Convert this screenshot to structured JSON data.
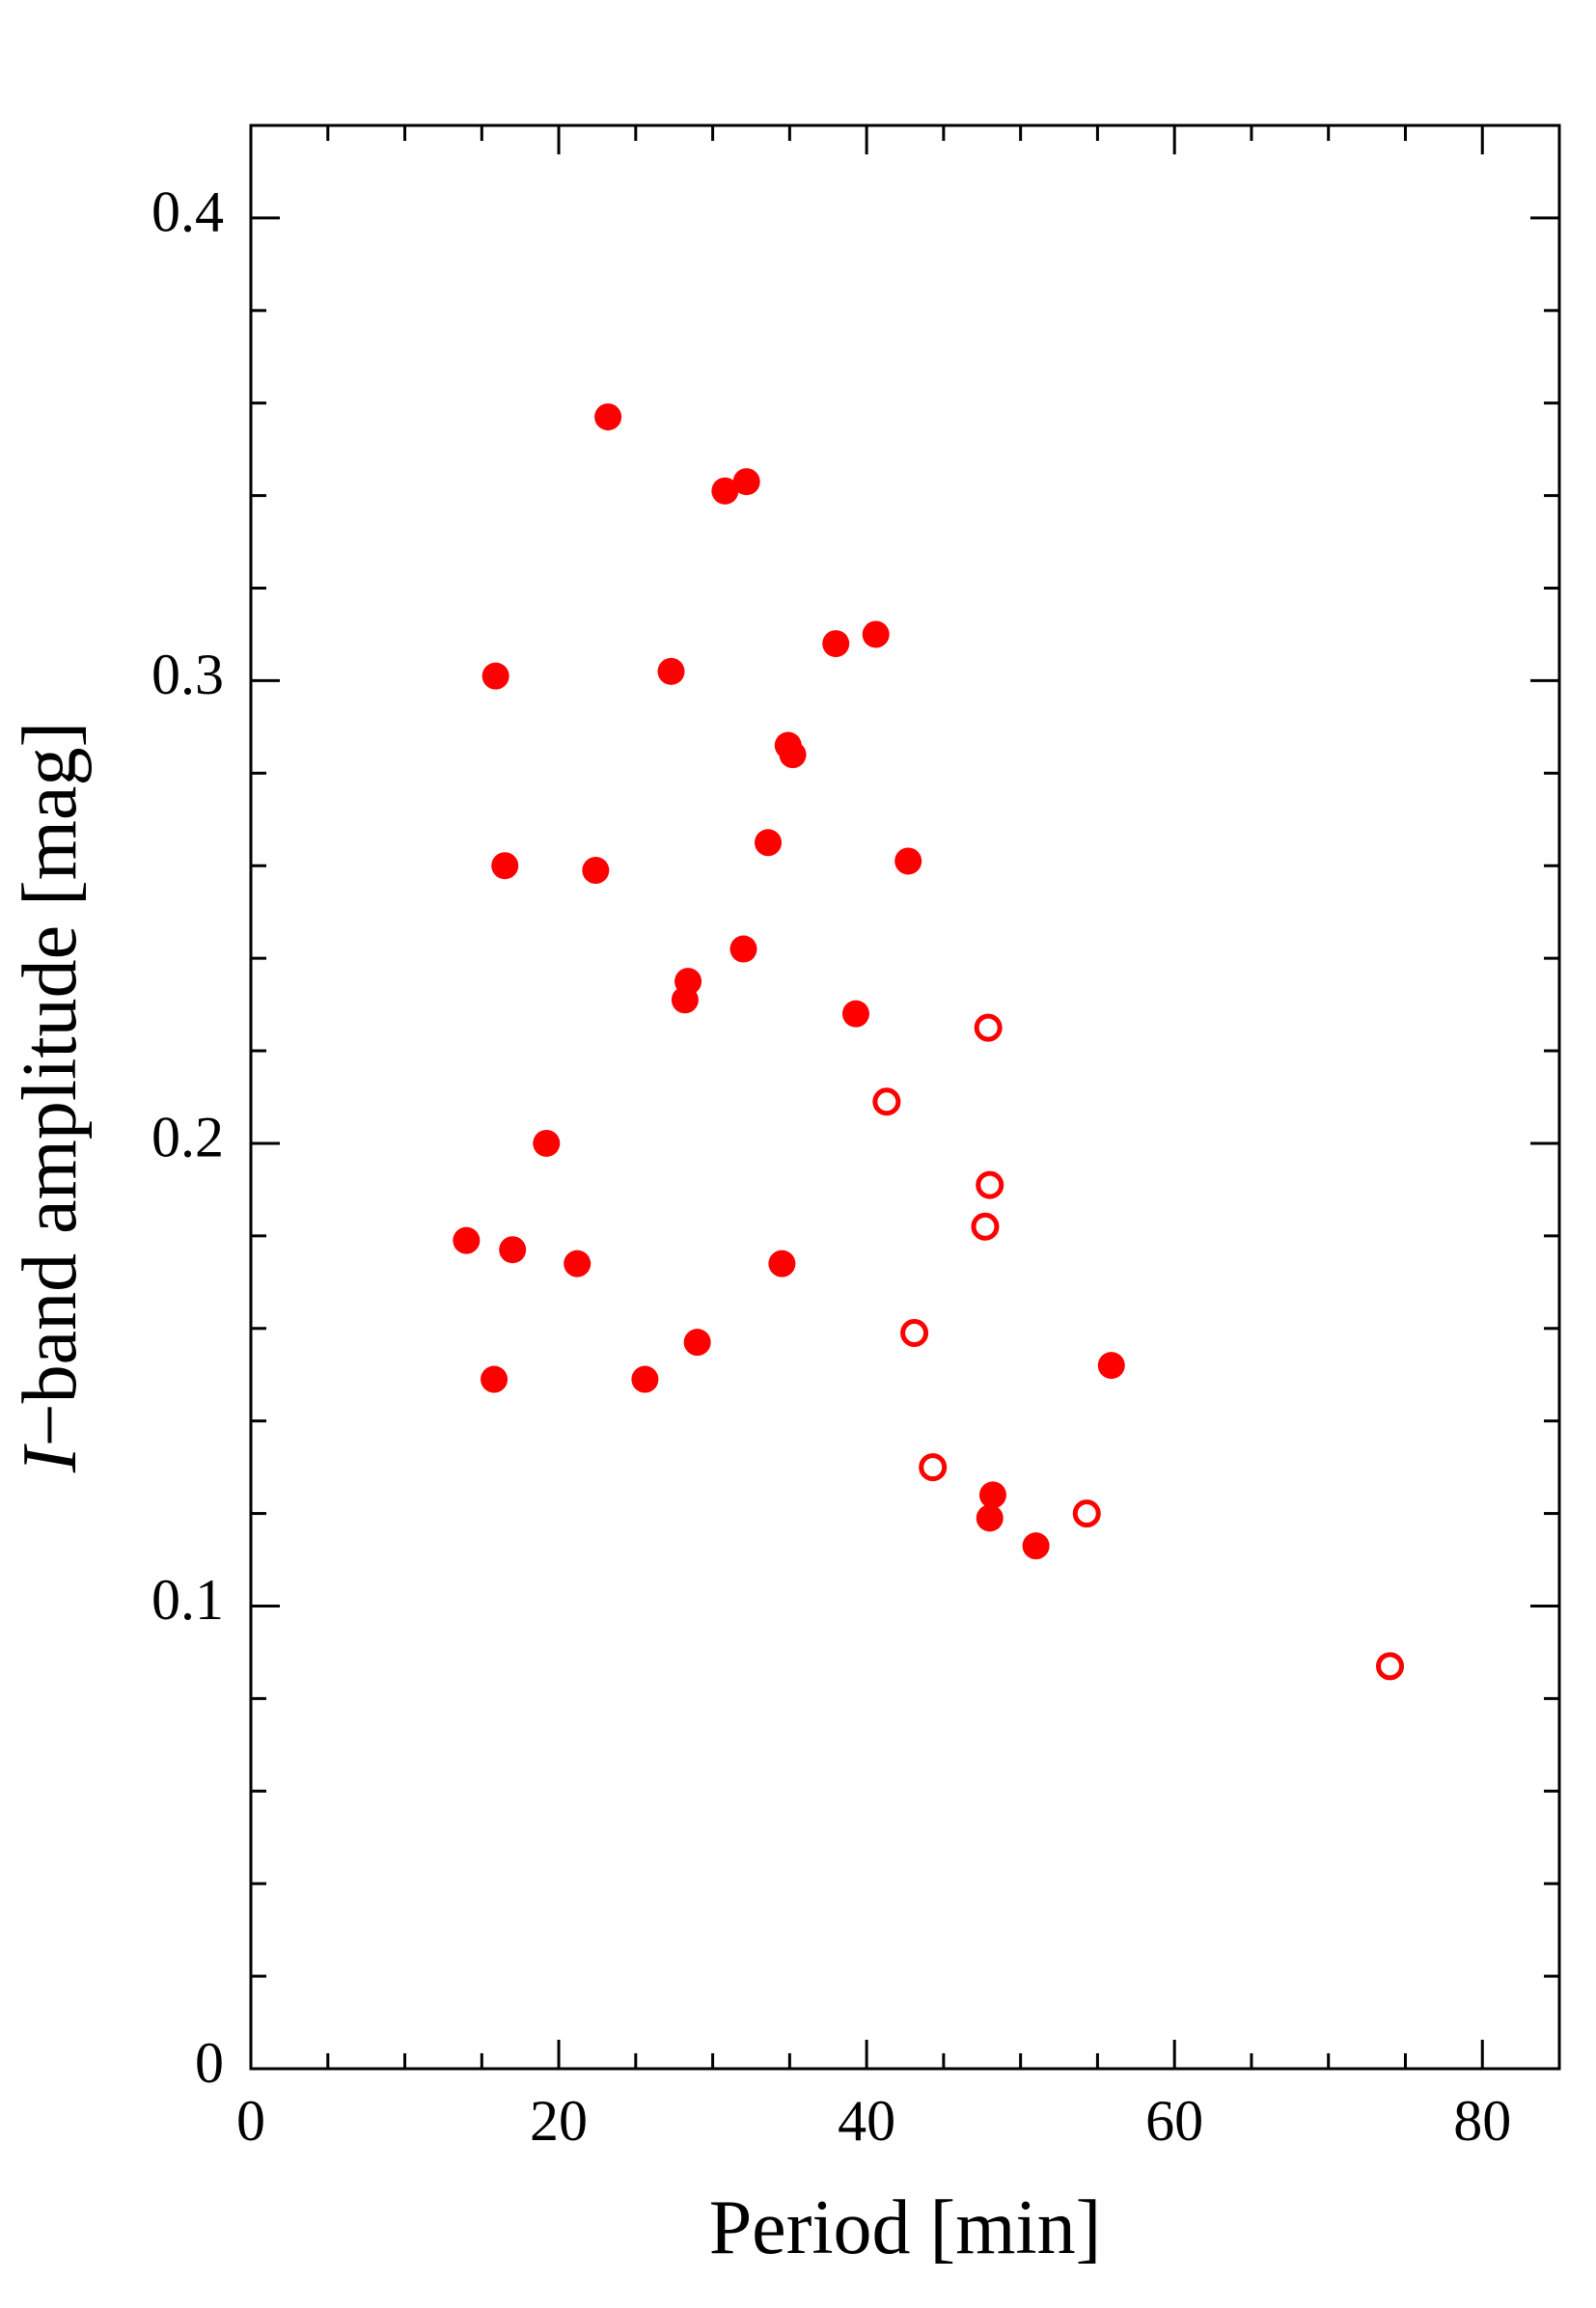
{
  "chart_data": {
    "type": "scatter",
    "xlabel": "Period [min]",
    "ylabel": [
      "I",
      "−band amplitude [mag]"
    ],
    "xlim": [
      0,
      85
    ],
    "ylim": [
      0,
      0.42
    ],
    "xticks": [
      0,
      20,
      40,
      60,
      80
    ],
    "yticks": [
      0,
      0.1,
      0.2,
      0.3,
      0.4
    ],
    "xminorticks": [
      5,
      10,
      15,
      25,
      30,
      35,
      45,
      50,
      55,
      65,
      70,
      75,
      85
    ],
    "yminorticks": [
      0.02,
      0.04,
      0.06,
      0.08,
      0.12,
      0.14,
      0.16,
      0.18,
      0.22,
      0.24,
      0.26,
      0.28,
      0.32,
      0.34,
      0.36,
      0.38,
      0.42
    ],
    "series": [
      {
        "color": "#ff0000",
        "filled": true,
        "x": [
          23.2,
          30.8,
          32.2,
          15.9,
          27.3,
          38.0,
          40.6,
          34.9,
          35.2,
          16.5,
          22.4,
          33.6,
          42.7,
          32.0,
          28.4,
          28.2,
          39.3,
          19.2,
          14.0,
          17.0,
          21.2,
          34.5,
          29.0,
          15.8,
          25.6,
          55.9,
          48.2,
          48.0,
          51.0
        ],
        "values": [
          0.357,
          0.341,
          0.343,
          0.301,
          0.302,
          0.308,
          0.31,
          0.286,
          0.284,
          0.26,
          0.259,
          0.265,
          0.261,
          0.242,
          0.235,
          0.231,
          0.228,
          0.2,
          0.179,
          0.177,
          0.174,
          0.174,
          0.157,
          0.149,
          0.149,
          0.152,
          0.124,
          0.119,
          0.113
        ]
      },
      {
        "color": "#ff0000",
        "filled": false,
        "x": [
          47.9,
          41.3,
          48.0,
          47.7,
          43.1,
          44.3,
          54.3,
          74.0
        ],
        "values": [
          0.225,
          0.209,
          0.191,
          0.182,
          0.159,
          0.13,
          0.12,
          0.087
        ]
      }
    ]
  }
}
